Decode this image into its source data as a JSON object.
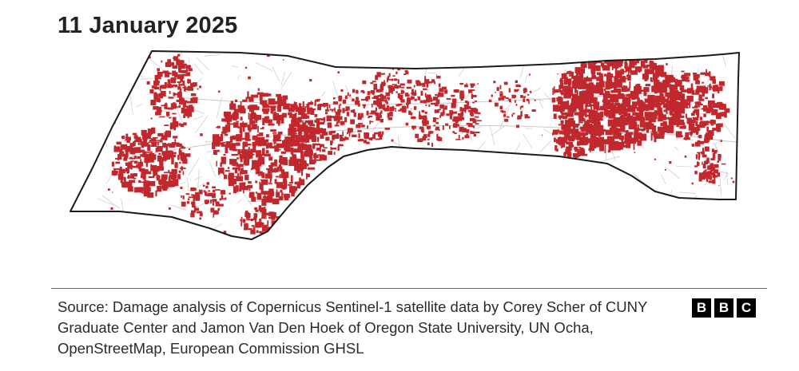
{
  "title": "11 January 2025",
  "source": "Source: Damage analysis of Copernicus Sentinel-1 satellite data by Corey Scher of CUNY Graduate Center and Jamon Van Den Hoek of Oregon State University, UN Ocha, OpenStreetMap, European Commission GHSL",
  "logo": {
    "letters": [
      "B",
      "B",
      "C"
    ]
  },
  "colors": {
    "damage": "#c0282d",
    "outline": "#1a1a1a",
    "streets": "#c9c9c9",
    "land": "#ffffff"
  }
}
